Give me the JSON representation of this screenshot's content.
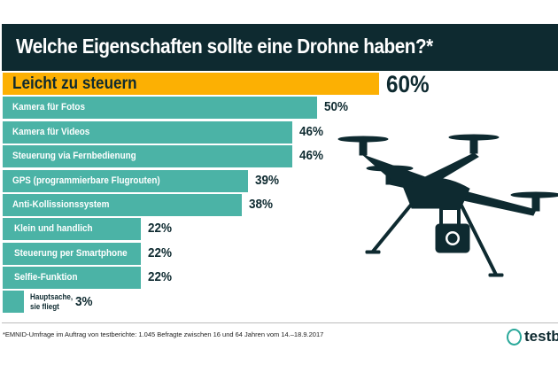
{
  "chart_data": {
    "type": "bar",
    "orientation": "horizontal",
    "title": "Welche Eigenschaften sollte eine Drohne haben?*",
    "categories": [
      "Leicht zu steuern",
      "Kamera für Fotos",
      "Kamera für Videos",
      "Steuerung via Fernbedienung",
      "GPS (programmierbare Flugrouten)",
      "Anti-Kollissionssystem",
      "Klein und handlich",
      "Steuerung per Smartphone",
      "Selfie-Funktion",
      "Hauptsache, sie fliegt"
    ],
    "values": [
      60,
      50,
      46,
      46,
      39,
      38,
      22,
      22,
      22,
      3
    ],
    "value_labels": [
      "60%",
      "50%",
      "46%",
      "46%",
      "39%",
      "38%",
      "22%",
      "22%",
      "22%",
      "3%"
    ],
    "unit": "%",
    "colors": {
      "highlight": "#fcb003",
      "bars": "#4bb3a6",
      "title_bg": "#0e2a30"
    }
  },
  "footnote": "*EMNID-Umfrage im Auftrag von testberichte: 1.045 Befragte zwischen 16 und 64 Jahren vom 14.–18.9.2017",
  "logo": "testbe"
}
